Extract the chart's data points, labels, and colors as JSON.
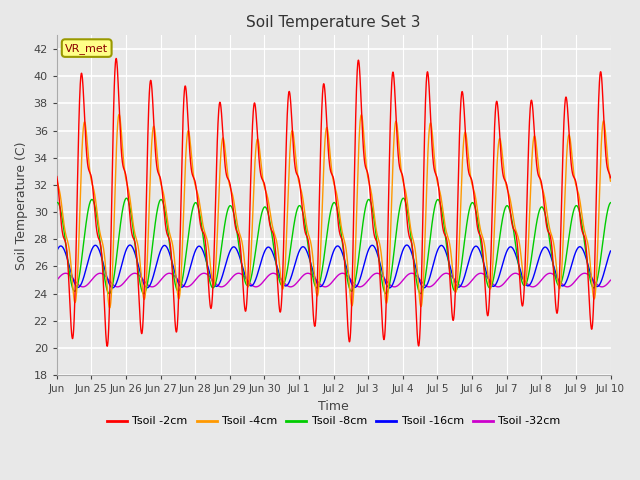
{
  "title": "Soil Temperature Set 3",
  "xlabel": "Time",
  "ylabel": "Soil Temperature (C)",
  "ylim": [
    18,
    43
  ],
  "yticks": [
    18,
    20,
    22,
    24,
    26,
    28,
    30,
    32,
    34,
    36,
    38,
    40,
    42
  ],
  "legend_label": "VR_met",
  "series_labels": [
    "Tsoil -2cm",
    "Tsoil -4cm",
    "Tsoil -8cm",
    "Tsoil -16cm",
    "Tsoil -32cm"
  ],
  "series_colors": [
    "#ff0000",
    "#ff9900",
    "#00cc00",
    "#0000ff",
    "#cc00cc"
  ],
  "n_points": 3000,
  "background_color": "#e8e8e8",
  "plot_bg_color": "#e8e8e8",
  "grid_color": "#ffffff",
  "x_tick_labels": [
    "Jun",
    "Jun 25",
    "Jun 26",
    "Jun 27",
    "Jun 28",
    "Jun 29",
    "Jun 30",
    "Jul 1",
    "Jul 2",
    "Jul 3",
    "Jul 4",
    "Jul 5",
    "Jul 6",
    "Jul 7",
    "Jul 8",
    "Jul 9",
    "Jul 10"
  ],
  "x_tick_positions": [
    0,
    1,
    2,
    3,
    4,
    5,
    6,
    7,
    8,
    9,
    10,
    11,
    12,
    13,
    14,
    15,
    16
  ]
}
